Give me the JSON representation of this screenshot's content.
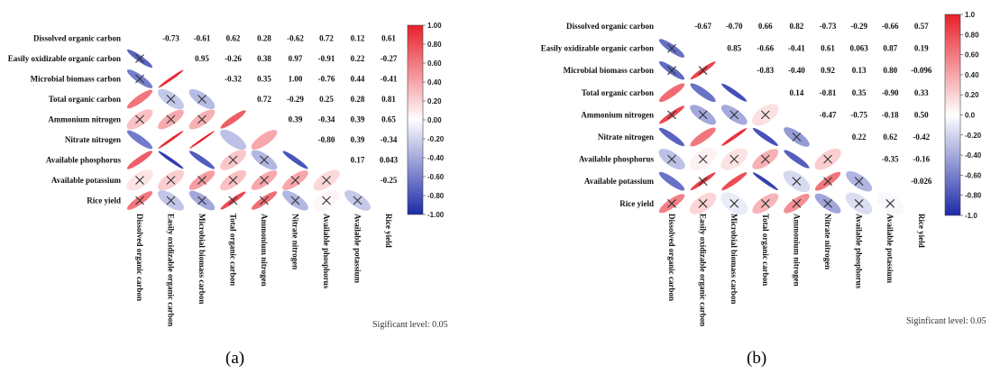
{
  "chart_data": [
    {
      "type": "heatmap",
      "panel_label": "(a)",
      "variables": [
        "Dissolved organic carbon",
        "Easily oxidizable organic carbon",
        "Microbial biomass carbon",
        "Total organic carbon",
        "Ammonium nitrogen",
        "Nitrate nitrogen",
        "Available phosphorus",
        "Available potassium",
        "Rice yield"
      ],
      "matrix": [
        [
          null,
          "-0.73",
          "-0.61",
          "0.62",
          "0.28",
          "-0.62",
          "0.72",
          "0.12",
          "0.61"
        ],
        [
          "-0.73",
          null,
          "0.95",
          "-0.26",
          "0.38",
          "0.97",
          "-0.91",
          "0.22",
          "-0.27"
        ],
        [
          "-0.61",
          "0.95",
          null,
          "-0.32",
          "0.35",
          "1.00",
          "-0.76",
          "0.44",
          "-0.41"
        ],
        [
          "0.62",
          "-0.26",
          "-0.32",
          null,
          "0.72",
          "-0.29",
          "0.25",
          "0.28",
          "0.81"
        ],
        [
          "0.28",
          "0.38",
          "0.35",
          "0.72",
          null,
          "0.39",
          "-0.34",
          "0.39",
          "0.65"
        ],
        [
          "-0.62",
          "0.97",
          "1.00",
          "-0.29",
          "0.39",
          null,
          "-0.80",
          "0.39",
          "-0.34"
        ],
        [
          "0.72",
          "-0.91",
          "-0.76",
          "0.25",
          "-0.34",
          "-0.80",
          null,
          "0.17",
          "0.043"
        ],
        [
          "0.12",
          "0.22",
          "0.44",
          "0.28",
          "0.39",
          "0.39",
          "0.17",
          null,
          "-0.25"
        ],
        [
          "0.61",
          "-0.27",
          "-0.41",
          "0.81",
          "0.65",
          "-0.34",
          "0.043",
          "-0.25",
          null
        ]
      ],
      "non_significant": [
        [
          1,
          0
        ],
        [
          2,
          0
        ],
        [
          3,
          1
        ],
        [
          3,
          2
        ],
        [
          4,
          0
        ],
        [
          4,
          1
        ],
        [
          4,
          2
        ],
        [
          6,
          3
        ],
        [
          6,
          4
        ],
        [
          7,
          0
        ],
        [
          7,
          1
        ],
        [
          7,
          2
        ],
        [
          7,
          3
        ],
        [
          7,
          4
        ],
        [
          7,
          5
        ],
        [
          7,
          6
        ],
        [
          8,
          0
        ],
        [
          8,
          1
        ],
        [
          8,
          2
        ],
        [
          8,
          3
        ],
        [
          8,
          4
        ],
        [
          8,
          5
        ],
        [
          8,
          6
        ],
        [
          8,
          7
        ]
      ],
      "colorbar_ticks": [
        "1.00",
        "0.80",
        "0.60",
        "0.40",
        "0.20",
        "0.00",
        "-0.20",
        "-0.40",
        "-0.60",
        "-0.80",
        "-1.00"
      ],
      "significance_note": "Sigificant level: 0.05",
      "colors": {
        "positive": "#e8202a",
        "negative": "#1c2aa8",
        "neutral": "#ffffff"
      }
    },
    {
      "type": "heatmap",
      "panel_label": "(b)",
      "variables": [
        "Dissolved organic carbon",
        "Easily oxidizable organic carbon",
        "Microbial biomass carbon",
        "Total organic carbon",
        "Ammonium nitrogen",
        "Nitrate nitrogen",
        "Available phosphorus",
        "Available potassium",
        "Rice yield"
      ],
      "matrix": [
        [
          null,
          "-0.67",
          "-0.70",
          "0.66",
          "0.82",
          "-0.73",
          "-0.29",
          "-0.66",
          "0.57"
        ],
        [
          "-0.67",
          null,
          "0.85",
          "-0.66",
          "-0.41",
          "0.61",
          "0.063",
          "0.87",
          "0.19"
        ],
        [
          "-0.70",
          "0.85",
          null,
          "-0.83",
          "-0.40",
          "0.92",
          "0.13",
          "0.80",
          "-0.096"
        ],
        [
          "0.66",
          "-0.66",
          "-0.83",
          null,
          "0.14",
          "-0.81",
          "0.35",
          "-0.90",
          "0.33"
        ],
        [
          "0.82",
          "-0.41",
          "-0.40",
          "0.14",
          null,
          "-0.47",
          "-0.75",
          "-0.18",
          "0.50"
        ],
        [
          "-0.73",
          "0.61",
          "0.92",
          "-0.81",
          "-0.47",
          null,
          "0.22",
          "0.62",
          "-0.42"
        ],
        [
          "-0.29",
          "0.063",
          "0.13",
          "0.35",
          "-0.75",
          "0.22",
          null,
          "-0.35",
          "-0.16"
        ],
        [
          "-0.66",
          "0.87",
          "0.80",
          "-0.90",
          "-0.18",
          "0.62",
          "-0.35",
          null,
          "-0.026"
        ],
        [
          "0.57",
          "0.19",
          "-0.096",
          "0.33",
          "0.50",
          "-0.42",
          "-0.16",
          "-0.026",
          null
        ]
      ],
      "non_significant": [
        [
          1,
          0
        ],
        [
          2,
          0
        ],
        [
          2,
          1
        ],
        [
          4,
          0
        ],
        [
          4,
          1
        ],
        [
          4,
          2
        ],
        [
          4,
          3
        ],
        [
          5,
          4
        ],
        [
          6,
          0
        ],
        [
          6,
          1
        ],
        [
          6,
          2
        ],
        [
          6,
          3
        ],
        [
          6,
          5
        ],
        [
          7,
          1
        ],
        [
          7,
          4
        ],
        [
          7,
          5
        ],
        [
          7,
          6
        ],
        [
          8,
          0
        ],
        [
          8,
          1
        ],
        [
          8,
          2
        ],
        [
          8,
          3
        ],
        [
          8,
          4
        ],
        [
          8,
          5
        ],
        [
          8,
          6
        ],
        [
          8,
          7
        ]
      ],
      "colorbar_ticks": [
        "1.0",
        "0.80",
        "0.60",
        "0.40",
        "0.20",
        "0.0",
        "-0.20",
        "-0.40",
        "-0.60",
        "-0.80",
        "-1.0"
      ],
      "significance_note": "Siginficant level: 0.05",
      "colors": {
        "positive": "#e8202a",
        "negative": "#1c2aa8",
        "neutral": "#ffffff"
      }
    }
  ]
}
